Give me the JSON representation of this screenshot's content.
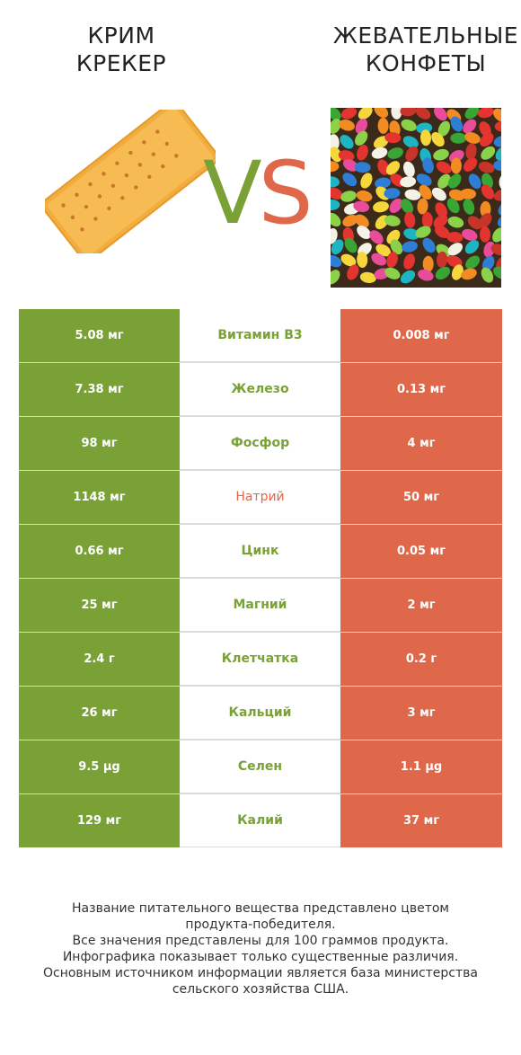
{
  "left_product": {
    "title": "КРИМ\nКРЕКЕР"
  },
  "right_product": {
    "title": "ЖЕВАТЕЛЬНЫЕ\nКОНФЕТЫ"
  },
  "vs": {
    "v": "V",
    "s": "S"
  },
  "colors": {
    "green": "#79a135",
    "red": "#e0684a"
  },
  "rows": [
    {
      "left": "5.08 мг",
      "name": "Витамин B3",
      "right": "0.008 мг",
      "winner": "left"
    },
    {
      "left": "7.38 мг",
      "name": "Железо",
      "right": "0.13 мг",
      "winner": "left"
    },
    {
      "left": "98 мг",
      "name": "Фосфор",
      "right": "4 мг",
      "winner": "left"
    },
    {
      "left": "1148 мг",
      "name": "Натрий",
      "right": "50 мг",
      "winner": "right"
    },
    {
      "left": "0.66 мг",
      "name": "Цинк",
      "right": "0.05 мг",
      "winner": "left"
    },
    {
      "left": "25 мг",
      "name": "Магний",
      "right": "2 мг",
      "winner": "left"
    },
    {
      "left": "2.4 г",
      "name": "Клетчатка",
      "right": "0.2 г",
      "winner": "left"
    },
    {
      "left": "26 мг",
      "name": "Кальций",
      "right": "3 мг",
      "winner": "left"
    },
    {
      "left": "9.5 µg",
      "name": "Селен",
      "right": "1.1 µg",
      "winner": "left"
    },
    {
      "left": "129 мг",
      "name": "Калий",
      "right": "37 мг",
      "winner": "left"
    }
  ],
  "footer": {
    "line1": "Название питательного вещества представлено цветом",
    "line2": "продукта-победителя.",
    "line3": "Все значения представлены для 100 граммов продукта.",
    "line4": "Инфографика показывает только существенные различия.",
    "line5": "Основным источником информации является база министерства",
    "line6": "сельского хозяйства США."
  }
}
